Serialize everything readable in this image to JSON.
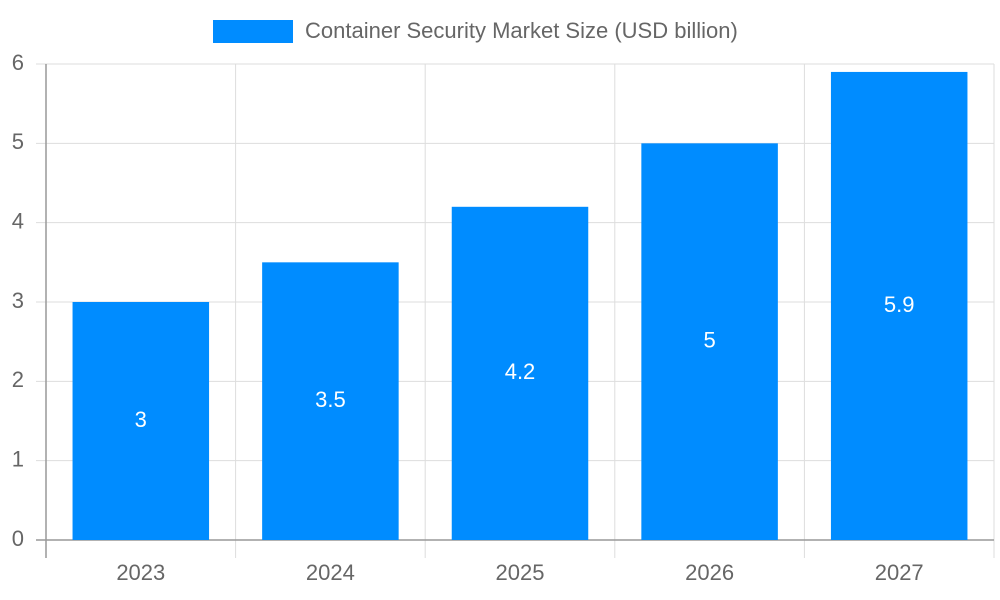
{
  "chart_data": {
    "type": "bar",
    "categories": [
      "2023",
      "2024",
      "2025",
      "2026",
      "2027"
    ],
    "series": [
      {
        "name": "Container Security Market Size (USD billion)",
        "color": "#008cff",
        "values": [
          3,
          3.5,
          4.2,
          5,
          5.9
        ]
      }
    ],
    "ylim": [
      0,
      6
    ],
    "yticks": [
      0,
      1,
      2,
      3,
      4,
      5,
      6
    ],
    "grid": true,
    "legend": "top"
  }
}
